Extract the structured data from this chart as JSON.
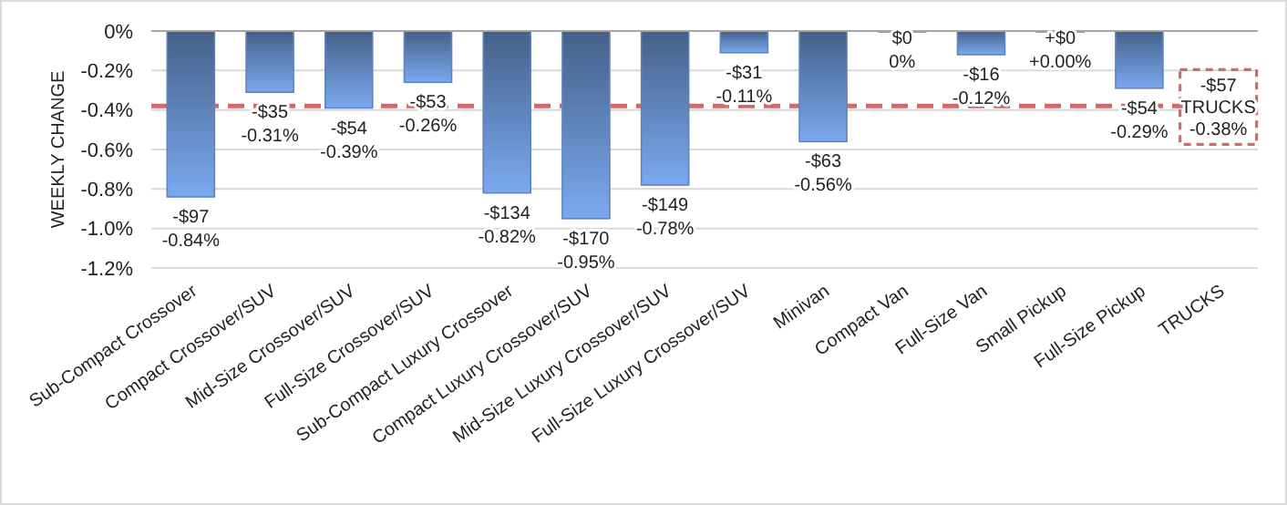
{
  "chart_data": {
    "type": "bar",
    "ylabel": "WEEKLY CHANGE",
    "categories": [
      "Sub-Compact Crossover",
      "Compact Crossover/SUV",
      "Mid-Size Crossover/SUV",
      "Full-Size Crossover/SUV",
      "Sub-Compact Luxury Crossover",
      "Compact Luxury Crossover/SUV",
      "Mid-Size Luxury Crossover/SUV",
      "Full-Size Luxury Crossover/SUV",
      "Minivan",
      "Compact Van",
      "Full-Size Van",
      "Small Pickup",
      "Full-Size Pickup",
      "TRUCKS"
    ],
    "values": [
      -0.84,
      -0.31,
      -0.39,
      -0.26,
      -0.82,
      -0.95,
      -0.78,
      -0.11,
      -0.56,
      0,
      -0.12,
      0,
      -0.29,
      null
    ],
    "value_labels": [
      "-$97\n-0.84%",
      "-$35\n-0.31%",
      "-$54\n-0.39%",
      "-$53\n-0.26%",
      "-$134\n-0.82%",
      "-$170\n-0.95%",
      "-$149\n-0.78%",
      "-$31\n-0.11%",
      "-$63\n-0.56%",
      "$0\n0%",
      "-$16\n-0.12%",
      "+$0\n+0.00%",
      "-$54\n-0.29%",
      null
    ],
    "color": "#5f84bb",
    "ylim": [
      -1.2,
      0
    ],
    "yticks": [
      {
        "value": 0,
        "label": "0%"
      },
      {
        "value": -0.2,
        "label": "-0.2%"
      },
      {
        "value": -0.4,
        "label": "-0.4%"
      },
      {
        "value": -0.6,
        "label": "-0.6%"
      },
      {
        "value": -0.8,
        "label": "-0.8%"
      },
      {
        "value": -1.0,
        "label": "-1.0%"
      },
      {
        "value": -1.2,
        "label": "-1.2%"
      }
    ],
    "grid": "y",
    "ref_lines": [
      {
        "axis": "y",
        "value": -0.38,
        "label": "-$57\nTRUCKS\n-0.38%",
        "color": "#d06a6a",
        "line_style": "dashed"
      }
    ]
  }
}
